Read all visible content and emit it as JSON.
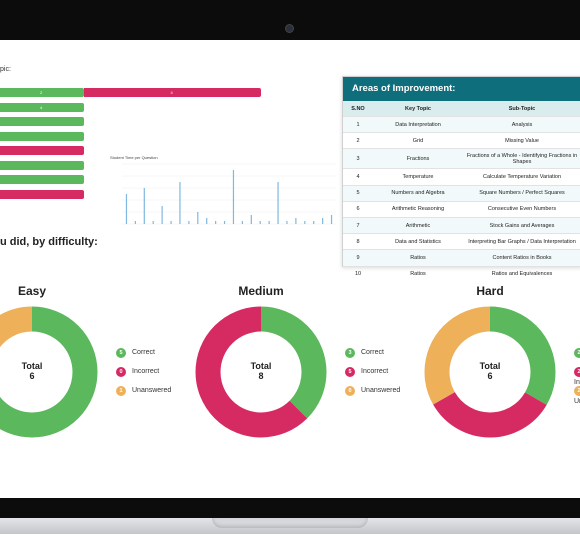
{
  "colors": {
    "correct": "#5cb85c",
    "incorrect": "#d62a63",
    "unanswered": "#efb05a",
    "header": "#0e6e7b"
  },
  "left_fragment": {
    "label": "pic:",
    "bars": [
      {
        "segments": [
          {
            "color": "#5cb85c",
            "value": "2"
          },
          {
            "color": "#d62a63",
            "value": "4"
          }
        ]
      },
      {
        "segments": [
          {
            "color": "#5cb85c",
            "value": "4"
          }
        ]
      },
      {
        "segments": [
          {
            "color": "#5cb85c",
            "value": ""
          }
        ]
      },
      {
        "segments": [
          {
            "color": "#5cb85c",
            "value": ""
          }
        ]
      },
      {
        "segments": [
          {
            "color": "#d62a63",
            "value": ""
          }
        ]
      },
      {
        "segments": [
          {
            "color": "#5cb85c",
            "value": ""
          }
        ]
      },
      {
        "segments": [
          {
            "color": "#5cb85c",
            "value": ""
          }
        ]
      },
      {
        "segments": [
          {
            "color": "#d62a63",
            "value": ""
          }
        ]
      }
    ]
  },
  "student_time_chart": {
    "title": "Student Time per Question",
    "chart_data": {
      "type": "bar",
      "values": [
        10,
        1,
        12,
        1,
        6,
        1,
        14,
        1,
        4,
        2,
        1,
        1,
        18,
        1,
        3,
        1,
        1,
        14,
        1,
        2,
        1,
        1,
        2,
        3
      ],
      "ylim": [
        0,
        20
      ]
    }
  },
  "areas_of_improvement": {
    "title": "Areas of Improvement:",
    "columns": [
      "S.NO",
      "Key Topic",
      "Sub-Topic"
    ],
    "rows": [
      {
        "no": "1",
        "topic": "Data Interpretation",
        "sub": "Analysis"
      },
      {
        "no": "2",
        "topic": "Grid",
        "sub": "Missing Value"
      },
      {
        "no": "3",
        "topic": "Fractions",
        "sub": "Fractions of a Whole - Identifying Fractions in Shapes"
      },
      {
        "no": "4",
        "topic": "Temperature",
        "sub": "Calculate Temperature Variation"
      },
      {
        "no": "5",
        "topic": "Numbers and Algebra",
        "sub": "Square Numbers / Perfect Squares"
      },
      {
        "no": "6",
        "topic": "Arithmetic Reasoning",
        "sub": "Consecutive Even Numbers"
      },
      {
        "no": "7",
        "topic": "Arithmetic",
        "sub": "Stock Gains and Averages"
      },
      {
        "no": "8",
        "topic": "Data and Statistics",
        "sub": "Interpreting Bar Graphs / Data Interpretation"
      },
      {
        "no": "9",
        "topic": "Ratios",
        "sub": "Content Ratios in Books"
      },
      {
        "no": "10",
        "topic": "Ratios",
        "sub": "Ratios and Equivalences"
      }
    ]
  },
  "difficulty": {
    "heading": "u did, by difficulty:",
    "total_label": "Total",
    "legend_labels": {
      "correct": "Correct",
      "incorrect": "Incorrect",
      "unanswered": "Unanswered"
    },
    "chart_data": [
      {
        "type": "pie",
        "title": "Easy",
        "total": "6",
        "correct": 5,
        "incorrect": 0,
        "unanswered": 1
      },
      {
        "type": "pie",
        "title": "Medium",
        "total": "8",
        "correct": 3,
        "incorrect": 5,
        "unanswered": 0
      },
      {
        "type": "pie",
        "title": "Hard",
        "total": "6",
        "correct": 2,
        "incorrect": 2,
        "unanswered": 2
      }
    ]
  }
}
